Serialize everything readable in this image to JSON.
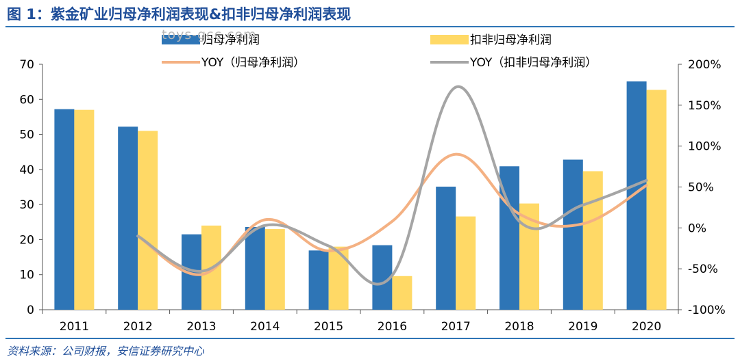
{
  "header": {
    "title": "图 1：紫金矿业归母净利润表现&扣非归母净利润表现"
  },
  "footer": {
    "source": "资料来源：公司财报，安信证券研究中心"
  },
  "watermark": {
    "text": "toys-gcc.com"
  },
  "chart_data": {
    "type": "bar",
    "categories": [
      "2011",
      "2012",
      "2013",
      "2014",
      "2015",
      "2016",
      "2017",
      "2018",
      "2019",
      "2020"
    ],
    "series": [
      {
        "name": "归母净利润",
        "type": "bar",
        "axis": "left",
        "color": "#2e75b6",
        "values": [
          57.2,
          52.2,
          21.5,
          23.6,
          16.9,
          18.4,
          35.1,
          40.9,
          42.8,
          65.1
        ]
      },
      {
        "name": "扣非归母净利润",
        "type": "bar",
        "axis": "left",
        "color": "#ffd966",
        "values": [
          57.0,
          51.0,
          24.0,
          23.0,
          18.0,
          9.6,
          26.6,
          30.3,
          39.5,
          62.7
        ]
      },
      {
        "name": "YOY（归母净利润）",
        "type": "line",
        "axis": "right",
        "color": "#f4b183",
        "values": [
          null,
          -10,
          -57,
          10,
          -28,
          8,
          90,
          17,
          5,
          52
        ]
      },
      {
        "name": "YOY（扣非归母净利润）",
        "type": "line",
        "axis": "right",
        "color": "#a5a5a5",
        "values": [
          null,
          -10,
          -53,
          3,
          -22,
          -58,
          172,
          8,
          28,
          58
        ]
      }
    ],
    "y_left": {
      "min": 0,
      "max": 70,
      "step": 10,
      "ticks": [
        "0",
        "10",
        "20",
        "30",
        "40",
        "50",
        "60",
        "70"
      ]
    },
    "y_right": {
      "min": -100,
      "max": 200,
      "step": 50,
      "ticks": [
        "-100%",
        "-50%",
        "0%",
        "50%",
        "100%",
        "150%",
        "200%"
      ]
    },
    "legend_position": "top",
    "grid": false
  }
}
